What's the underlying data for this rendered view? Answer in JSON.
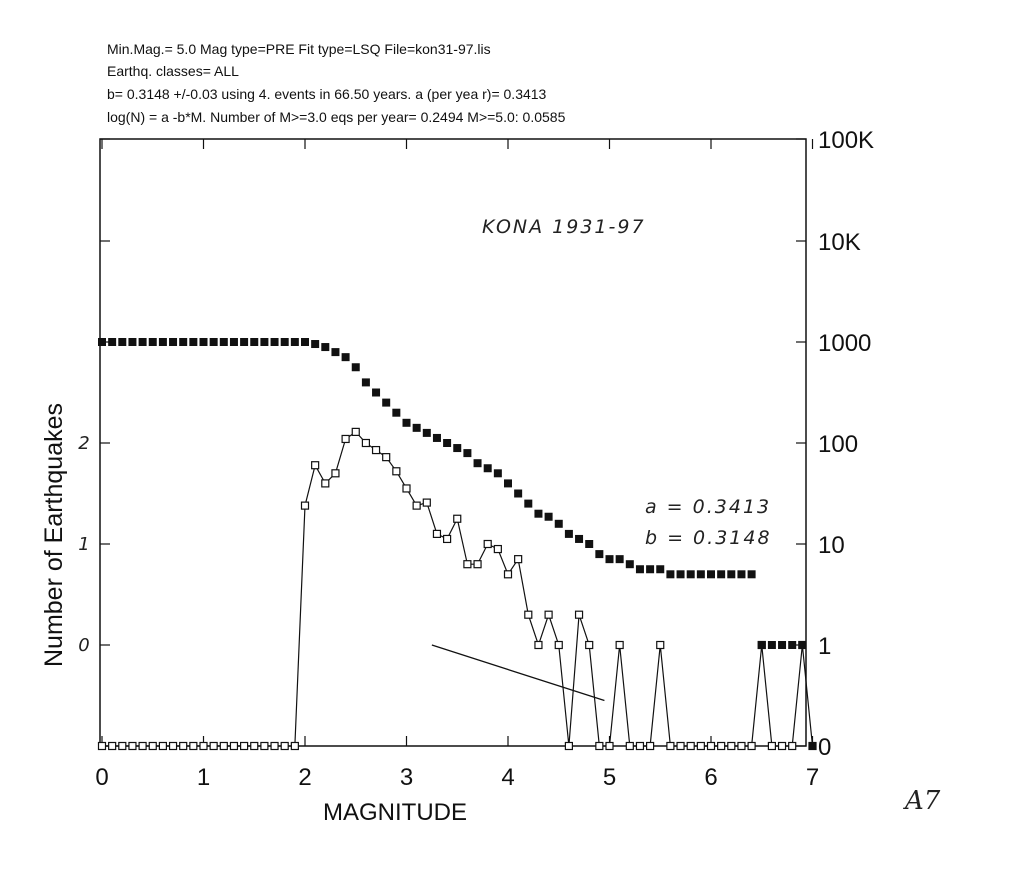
{
  "header": {
    "line1": "Min.Mag.= 5.0  Mag type=PRE  Fit type=LSQ  File=kon31-97.lis",
    "line2": "Earthq. classes= ALL",
    "line3": "b= 0.3148 +/-0.03 using    4. events in 66.50 years. a (per yea r)=  0.3413",
    "line4": "log(N) = a -b*M.  Number of M>=3.0 eqs per year=    0.2494  M>=5.0:   0.0585"
  },
  "annotations": {
    "region": "KONA   1931-97",
    "a_value": "a = 0.3413",
    "b_value": "b = 0.3148",
    "page_number": "A7"
  },
  "chart_data": {
    "type": "scatter",
    "xlabel": "MAGNITUDE",
    "ylabel": "Number of Earthquakes",
    "xlim": [
      0,
      7
    ],
    "x_ticks": [
      "0",
      "1",
      "2",
      "3",
      "4",
      "5",
      "6",
      "7"
    ],
    "y_scale": "log",
    "y_right_ticks": [
      "0",
      "1",
      "10",
      "100",
      "1000",
      "10K",
      "100K"
    ],
    "y_left_ticks": [
      "0",
      "1",
      "2"
    ],
    "grid": false,
    "x": [
      0,
      0.1,
      0.2,
      0.3,
      0.4,
      0.5,
      0.6,
      0.7,
      0.8,
      0.9,
      1,
      1.1,
      1.2,
      1.3,
      1.4,
      1.5,
      1.6,
      1.7,
      1.8,
      1.9,
      2,
      2.1,
      2.2,
      2.3,
      2.4,
      2.5,
      2.6,
      2.7,
      2.8,
      2.9,
      3,
      3.1,
      3.2,
      3.3,
      3.4,
      3.5,
      3.6,
      3.7,
      3.8,
      3.9,
      4,
      4.1,
      4.2,
      4.3,
      4.4,
      4.5,
      4.6,
      4.7,
      4.8,
      4.9,
      5,
      5.1,
      5.2,
      5.3,
      5.4,
      5.5,
      5.6,
      5.7,
      5.8,
      5.9,
      6,
      6.1,
      6.2,
      6.3,
      6.4,
      6.5,
      6.6,
      6.7,
      6.8,
      6.9,
      7
    ],
    "series": [
      {
        "marker": "filled-square",
        "values": [
          3.0,
          3.0,
          3.0,
          3.0,
          3.0,
          3.0,
          3.0,
          3.0,
          3.0,
          3.0,
          3.0,
          3.0,
          3.0,
          3.0,
          3.0,
          3.0,
          3.0,
          3.0,
          3.0,
          3.0,
          3.0,
          2.98,
          2.95,
          2.9,
          2.85,
          2.75,
          2.6,
          2.5,
          2.4,
          2.3,
          2.2,
          2.15,
          2.1,
          2.05,
          2.0,
          1.95,
          1.9,
          1.8,
          1.75,
          1.7,
          1.6,
          1.5,
          1.4,
          1.3,
          1.27,
          1.2,
          1.1,
          1.05,
          1.0,
          0.9,
          0.85,
          0.85,
          0.8,
          0.75,
          0.75,
          0.75,
          0.7,
          0.7,
          0.7,
          0.7,
          0.7,
          0.7,
          0.7,
          0.7,
          0.7,
          0.0,
          0.0,
          0.0,
          0.0,
          0.0,
          -1.0
        ]
      },
      {
        "marker": "open-square",
        "values": [
          -1,
          -1,
          -1,
          -1,
          -1,
          -1,
          -1,
          -1,
          -1,
          -1,
          -1,
          -1,
          -1,
          -1,
          -1,
          -1,
          -1,
          -1,
          -1,
          -1,
          1.38,
          1.78,
          1.6,
          1.7,
          2.04,
          2.11,
          2.0,
          1.93,
          1.86,
          1.72,
          1.55,
          1.38,
          1.41,
          1.1,
          1.05,
          1.25,
          0.8,
          0.8,
          1.0,
          0.95,
          0.7,
          0.85,
          0.3,
          0.0,
          0.3,
          0.0,
          -1,
          0.3,
          0.0,
          -1,
          -1,
          0.0,
          -1,
          -1,
          -1,
          0.0,
          -1,
          -1,
          -1,
          -1,
          -1,
          -1,
          -1,
          -1,
          -1,
          0.0,
          -1,
          -1,
          -1,
          0.0,
          -1
        ]
      }
    ],
    "fit_line": {
      "x": [
        3.25,
        4.95
      ],
      "y": [
        0.0,
        -0.55
      ]
    }
  }
}
